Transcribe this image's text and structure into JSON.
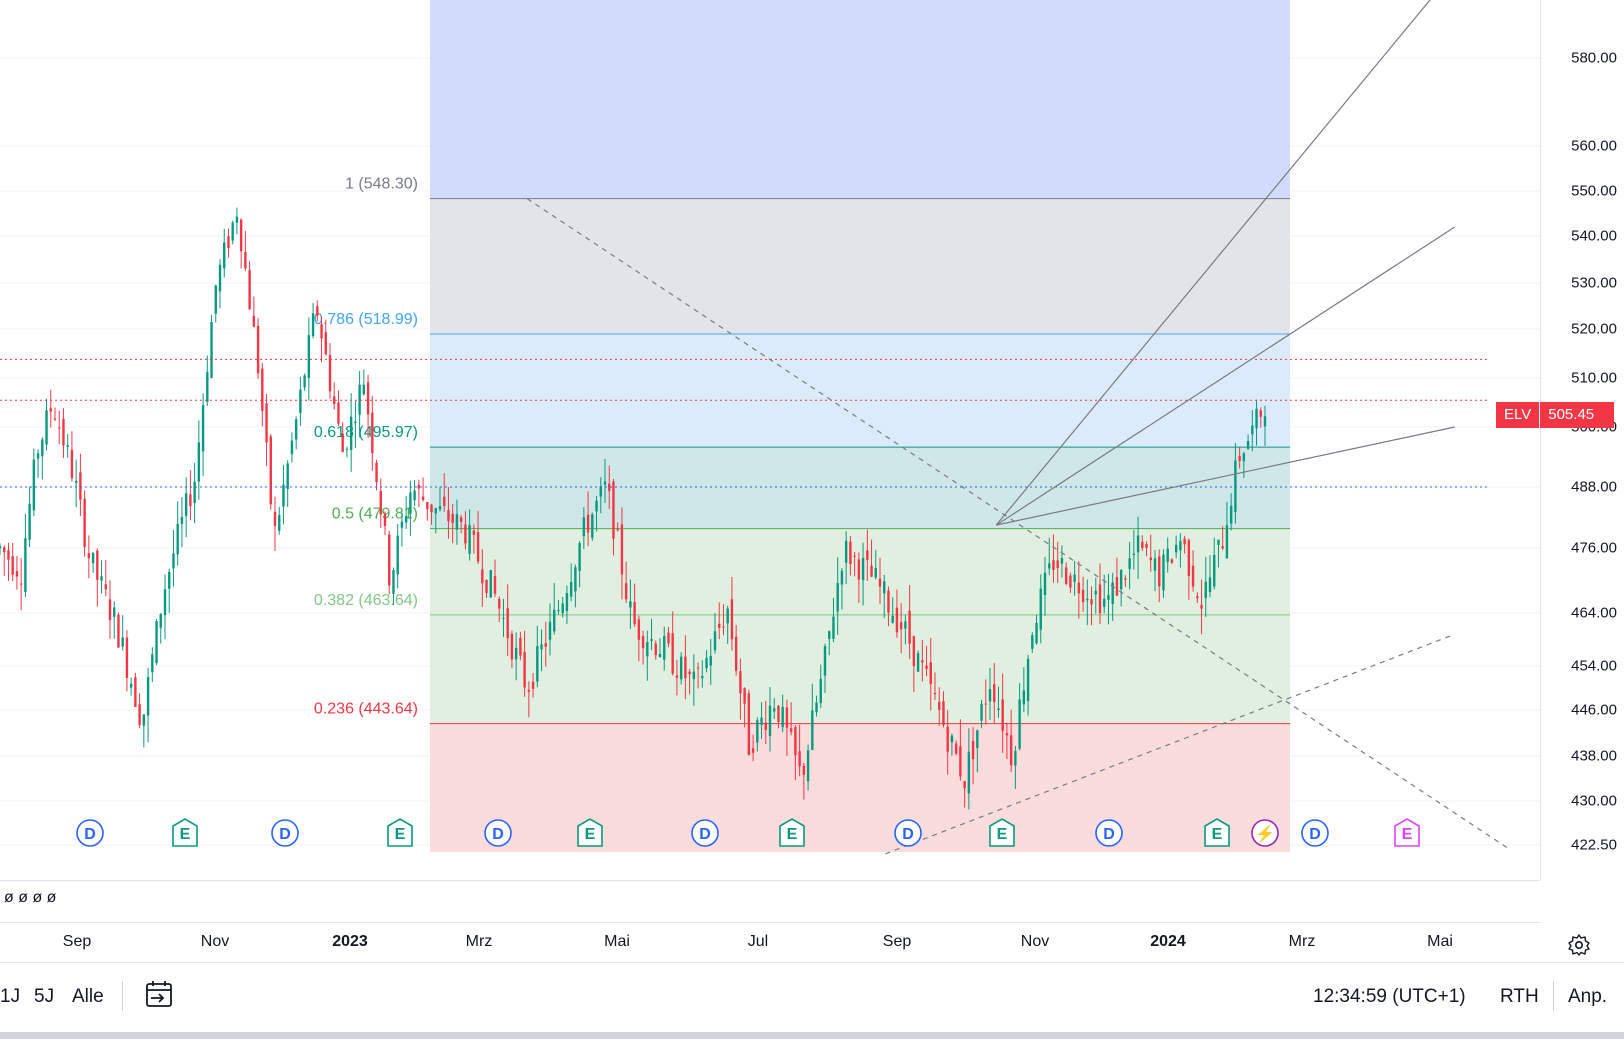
{
  "chart_data": {
    "type": "candlestick",
    "symbol": "ELV",
    "last_price": "505.45",
    "price_ticks": [
      580,
      560,
      550,
      540,
      530,
      520,
      510,
      500,
      488,
      476,
      464,
      454,
      446,
      438,
      430,
      422.5
    ],
    "price_tick_labels": [
      "580.00",
      "560.00",
      "550.00",
      "540.00",
      "530.00",
      "520.00",
      "510.00",
      "500.00",
      "488.00",
      "476.00",
      "464.00",
      "454.00",
      "446.00",
      "438.00",
      "430.00",
      "422.50"
    ],
    "ylim": [
      420,
      595
    ],
    "time_labels": [
      {
        "label": "Sep",
        "bold": false
      },
      {
        "label": "Nov",
        "bold": false
      },
      {
        "label": "2023",
        "bold": true
      },
      {
        "label": "Mrz",
        "bold": false
      },
      {
        "label": "Mai",
        "bold": false
      },
      {
        "label": "Jul",
        "bold": false
      },
      {
        "label": "Sep",
        "bold": false
      },
      {
        "label": "Nov",
        "bold": false
      },
      {
        "label": "2024",
        "bold": true
      },
      {
        "label": "Mrz",
        "bold": false
      },
      {
        "label": "Mai",
        "bold": false
      }
    ],
    "fib_levels": [
      {
        "ratio": "1",
        "price": 548.3,
        "label": "1 (548.30)",
        "color": "#787b86"
      },
      {
        "ratio": "0.786",
        "price": 518.99,
        "label": "0.786 (518.99)",
        "color": "#42a5f5"
      },
      {
        "ratio": "0.618",
        "price": 495.97,
        "label": "0.618 (495.97)",
        "color": "#089981"
      },
      {
        "ratio": "0.5",
        "price": 479.81,
        "label": "0.5 (479.81)",
        "color": "#4caf50"
      },
      {
        "ratio": "0.382",
        "price": 463.64,
        "label": "0.382 (463.64)",
        "color": "#81c784"
      },
      {
        "ratio": "0.236",
        "price": 443.64,
        "label": "0.236 (443.64)",
        "color": "#f23645"
      }
    ],
    "price_path_anchors": [
      {
        "t": 0,
        "p": 476
      },
      {
        "t": 0.02,
        "p": 472
      },
      {
        "t": 0.035,
        "p": 495
      },
      {
        "t": 0.05,
        "p": 505
      },
      {
        "t": 0.07,
        "p": 490
      },
      {
        "t": 0.085,
        "p": 474
      },
      {
        "t": 0.11,
        "p": 462
      },
      {
        "t": 0.135,
        "p": 444
      },
      {
        "t": 0.155,
        "p": 468
      },
      {
        "t": 0.185,
        "p": 490
      },
      {
        "t": 0.205,
        "p": 530
      },
      {
        "t": 0.225,
        "p": 546
      },
      {
        "t": 0.245,
        "p": 512
      },
      {
        "t": 0.26,
        "p": 478
      },
      {
        "t": 0.28,
        "p": 500
      },
      {
        "t": 0.3,
        "p": 525
      },
      {
        "t": 0.325,
        "p": 495
      },
      {
        "t": 0.345,
        "p": 510
      },
      {
        "t": 0.37,
        "p": 470
      },
      {
        "t": 0.39,
        "p": 488
      },
      {
        "t": 0.41,
        "p": 484
      },
      {
        "t": 0.44,
        "p": 480
      },
      {
        "t": 0.47,
        "p": 467
      },
      {
        "t": 0.5,
        "p": 450
      },
      {
        "t": 0.53,
        "p": 465
      },
      {
        "t": 0.555,
        "p": 480
      },
      {
        "t": 0.575,
        "p": 488
      },
      {
        "t": 0.6,
        "p": 462
      },
      {
        "t": 0.63,
        "p": 457
      },
      {
        "t": 0.66,
        "p": 450
      },
      {
        "t": 0.69,
        "p": 465
      },
      {
        "t": 0.71,
        "p": 440
      },
      {
        "t": 0.735,
        "p": 448
      },
      {
        "t": 0.76,
        "p": 434
      },
      {
        "t": 0.78,
        "p": 452
      },
      {
        "t": 0.8,
        "p": 476
      },
      {
        "t": 0.83,
        "p": 470
      },
      {
        "t": 0.86,
        "p": 460
      },
      {
        "t": 0.89,
        "p": 446
      },
      {
        "t": 0.915,
        "p": 434
      },
      {
        "t": 0.94,
        "p": 452
      },
      {
        "t": 0.96,
        "p": 438
      },
      {
        "t": 0.98,
        "p": 462
      },
      {
        "t": 1.0,
        "p": 474
      },
      {
        "t": 1.02,
        "p": 470
      },
      {
        "t": 1.05,
        "p": 466
      },
      {
        "t": 1.08,
        "p": 476
      },
      {
        "t": 1.1,
        "p": 471
      },
      {
        "t": 1.12,
        "p": 478
      },
      {
        "t": 1.14,
        "p": 466
      },
      {
        "t": 1.16,
        "p": 478
      },
      {
        "t": 1.175,
        "p": 494
      },
      {
        "t": 1.19,
        "p": 500
      },
      {
        "t": 1.2,
        "p": 505
      }
    ],
    "trendlines": [
      {
        "from": {
          "t": 0.945,
          "p": 480.5
        },
        "to": {
          "t": 1.38,
          "p": 600
        },
        "style": "solid"
      },
      {
        "from": {
          "t": 0.945,
          "p": 480.5
        },
        "to": {
          "t": 1.38,
          "p": 542
        },
        "style": "solid"
      },
      {
        "from": {
          "t": 0.945,
          "p": 480.5
        },
        "to": {
          "t": 1.38,
          "p": 500
        },
        "style": "solid"
      },
      {
        "from": {
          "t": 0.5,
          "p": 548.3
        },
        "to": {
          "t": 1.43,
          "p": 422
        },
        "style": "dashed"
      },
      {
        "from": {
          "t": 0.84,
          "p": 421
        },
        "to": {
          "t": 1.38,
          "p": 460
        },
        "style": "dashed"
      }
    ],
    "horizontal_lines": [
      {
        "price": 513.8,
        "color": "#f23645",
        "style": "dotted"
      },
      {
        "price": 505.45,
        "color": "#f23645",
        "style": "dotted"
      },
      {
        "price": 488,
        "color": "#2962ff",
        "style": "dotted"
      }
    ],
    "event_markers": [
      {
        "type": "D",
        "label": "D",
        "color": "#2962ff"
      },
      {
        "type": "E",
        "label": "E",
        "color": "#089981"
      },
      {
        "type": "D",
        "label": "D",
        "color": "#2962ff"
      },
      {
        "type": "E",
        "label": "E",
        "color": "#089981"
      },
      {
        "type": "D",
        "label": "D",
        "color": "#2962ff"
      },
      {
        "type": "E",
        "label": "E",
        "color": "#089981"
      },
      {
        "type": "D",
        "label": "D",
        "color": "#2962ff"
      },
      {
        "type": "E",
        "label": "E",
        "color": "#089981"
      },
      {
        "type": "D",
        "label": "D",
        "color": "#2962ff"
      },
      {
        "type": "E",
        "label": "E",
        "color": "#089981"
      },
      {
        "type": "D",
        "label": "D",
        "color": "#2962ff"
      },
      {
        "type": "E",
        "label": "E",
        "color": "#089981"
      },
      {
        "type": "split",
        "label": "⚡",
        "color": "#9c27b0"
      },
      {
        "type": "D",
        "label": "D",
        "color": "#2962ff"
      },
      {
        "type": "E-future",
        "label": "E",
        "color": "#e040fb"
      }
    ],
    "colors": {
      "up": "#089981",
      "down": "#f23645",
      "zone_top": "#d1dcfd",
      "zone_grey": "#e3e4e8",
      "zone_lightblue": "#dcebf9",
      "zone_teal": "#cfe7e7",
      "zone_green": "#e0efdf",
      "zone_red": "#fbdada"
    }
  },
  "ohlc_row": {
    "text": "ø ø ø ø"
  },
  "settings_icon": "gear-icon",
  "bottom_bar": {
    "ranges": [
      "1J",
      "5J",
      "Alle"
    ],
    "compare_icon": "date-range-icon",
    "clock": "12:34:59 (UTC+1)",
    "session": "RTH",
    "adjust": "Anp."
  }
}
